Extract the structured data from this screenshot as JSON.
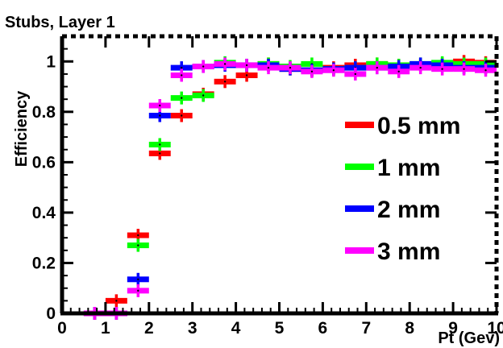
{
  "chart_data": {
    "type": "scatter",
    "title": "Stubs, Layer 1",
    "xlabel": "Pt (Gev)",
    "ylabel": "Efficiency",
    "xlim": [
      0,
      10
    ],
    "ylim": [
      0,
      1.1
    ],
    "x_ticks": [
      0,
      1,
      2,
      3,
      4,
      5,
      6,
      7,
      8,
      9,
      10
    ],
    "y_ticks": [
      0,
      0.2,
      0.4,
      0.6,
      0.8,
      1
    ],
    "x_tick_labels": [
      "0",
      "1",
      "2",
      "3",
      "4",
      "5",
      "6",
      "7",
      "8",
      "9",
      "10"
    ],
    "y_tick_labels": [
      "0",
      "0.2",
      "0.4",
      "0.6",
      "0.8",
      "1"
    ],
    "bin_half_width": 0.25,
    "legend_position": "right",
    "series": [
      {
        "name": "0.5 mm",
        "color": "#ff0000",
        "x": [
          0.75,
          1.25,
          1.75,
          2.25,
          2.75,
          3.25,
          3.75,
          4.25,
          4.75,
          5.25,
          5.75,
          6.25,
          6.75,
          7.25,
          7.75,
          8.25,
          8.75,
          9.25,
          9.75
        ],
        "y": [
          0.0,
          0.05,
          0.31,
          0.635,
          0.785,
          0.87,
          0.92,
          0.945,
          0.99,
          0.97,
          0.965,
          0.975,
          0.985,
          0.99,
          0.985,
          0.985,
          0.99,
          1.0,
          0.995
        ]
      },
      {
        "name": "1 mm",
        "color": "#00ff00",
        "x": [
          0.75,
          1.25,
          1.75,
          2.25,
          2.75,
          3.25,
          3.75,
          4.25,
          4.75,
          5.25,
          5.75,
          6.25,
          6.75,
          7.25,
          7.75,
          8.25,
          8.75,
          9.25,
          9.75
        ],
        "y": [
          0.0,
          0.0,
          0.27,
          0.67,
          0.855,
          0.865,
          0.995,
          0.985,
          0.99,
          0.98,
          0.99,
          0.97,
          0.975,
          0.99,
          0.985,
          0.99,
          0.995,
          0.99,
          0.99
        ]
      },
      {
        "name": "2 mm",
        "color": "#0000ff",
        "x": [
          0.75,
          1.25,
          1.75,
          2.25,
          2.75,
          3.25,
          3.75,
          4.25,
          4.75,
          5.25,
          5.75,
          6.25,
          6.75,
          7.25,
          7.75,
          8.25,
          8.75,
          9.25,
          9.75
        ],
        "y": [
          0.0,
          0.0,
          0.135,
          0.785,
          0.975,
          0.98,
          0.985,
          0.985,
          0.985,
          0.97,
          0.965,
          0.97,
          0.975,
          0.975,
          0.98,
          0.99,
          0.985,
          0.975,
          0.975
        ]
      },
      {
        "name": "3 mm",
        "color": "#ff00ff",
        "x": [
          0.75,
          1.25,
          1.75,
          2.25,
          2.75,
          3.25,
          3.75,
          4.25,
          4.75,
          5.25,
          5.75,
          6.25,
          6.75,
          7.25,
          7.75,
          8.25,
          8.75,
          9.25,
          9.75
        ],
        "y": [
          0.0,
          0.0,
          0.09,
          0.825,
          0.945,
          0.98,
          0.99,
          0.985,
          0.975,
          0.975,
          0.96,
          0.965,
          0.95,
          0.975,
          0.96,
          0.975,
          0.97,
          0.97,
          0.965
        ]
      }
    ]
  }
}
